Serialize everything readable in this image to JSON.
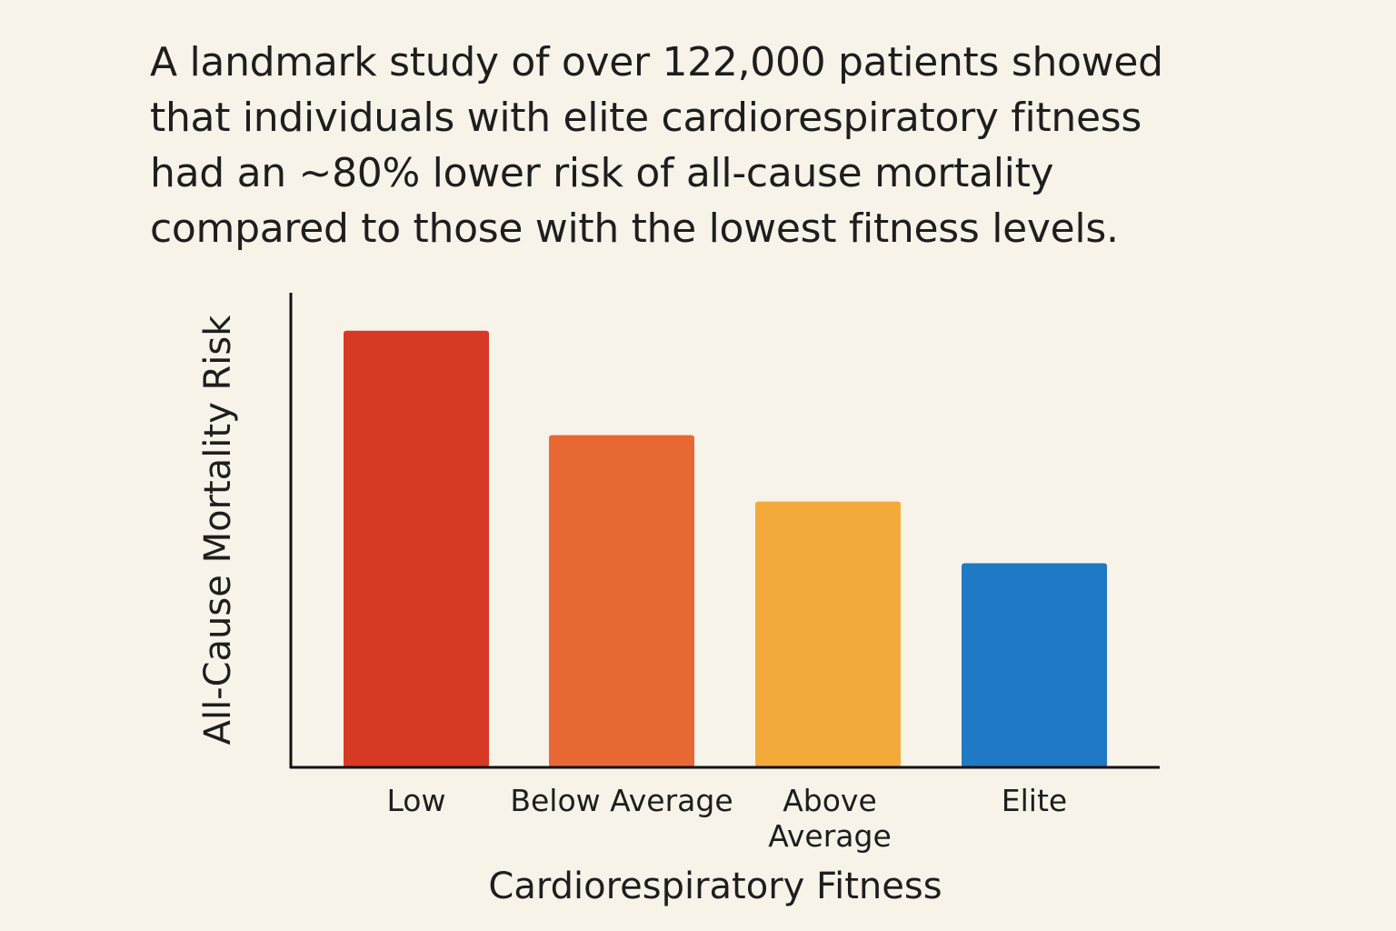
{
  "headline": {
    "lines": [
      "A landmark study of over 122,000 patients showed",
      "that individuals with elite cardiorespiratory fitness",
      "had an ~80% lower risk of all-cause mortality",
      "compared to those with the lowest fitness levels."
    ]
  },
  "chart_data": {
    "type": "bar",
    "title": "",
    "xlabel": "Cardiorespiratory Fitness",
    "ylabel": "All-Cause Mortality Risk",
    "categories": [
      "Low",
      "Below Average",
      "Above Average",
      "Elite"
    ],
    "category_label_lines": [
      [
        "Low"
      ],
      [
        "Below Average"
      ],
      [
        "Above",
        "Average"
      ],
      [
        "Elite"
      ]
    ],
    "values": [
      92,
      70,
      56,
      43
    ],
    "value_units": "relative (no numeric scale shown)",
    "colors": [
      "#d63a24",
      "#e86833",
      "#f4aa3b",
      "#2079c4"
    ],
    "ylim": [
      0,
      100
    ],
    "y_ticks_shown": false,
    "grid": false,
    "legend": "none"
  }
}
